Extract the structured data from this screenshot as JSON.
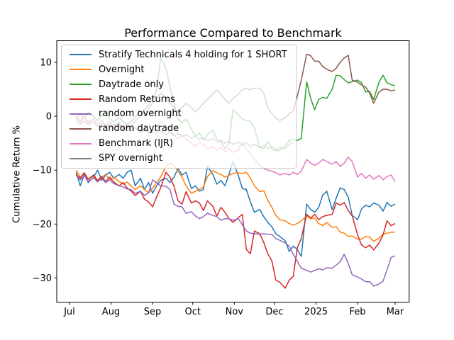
{
  "chart_data": {
    "type": "line",
    "title": "Performance Compared to Benchmark",
    "xlabel": "",
    "ylabel": "Cumulative Return %",
    "grid": false,
    "background": "#ffffff",
    "axis_color": "#000000",
    "xlim": [
      -9.5,
      253.5
    ],
    "ylim": [
      -34.5,
      14
    ],
    "xticks": [
      {
        "day": 0,
        "label": "Jul"
      },
      {
        "day": 31,
        "label": "Aug"
      },
      {
        "day": 62,
        "label": "Sep"
      },
      {
        "day": 92,
        "label": "Oct"
      },
      {
        "day": 123,
        "label": "Nov"
      },
      {
        "day": 153,
        "label": "Dec"
      },
      {
        "day": 184,
        "label": "2025"
      },
      {
        "day": 215,
        "label": "Feb"
      },
      {
        "day": 243,
        "label": "Mar"
      }
    ],
    "yticks": [
      {
        "value": 10,
        "label": "10"
      },
      {
        "value": 0,
        "label": "0"
      },
      {
        "value": -10,
        "label": "−10"
      },
      {
        "value": -20,
        "label": "−20"
      },
      {
        "value": -30,
        "label": "−30"
      }
    ],
    "legend": {
      "position": "upper left",
      "framealpha": 0.75,
      "edge_color": "#c9c9c9"
    },
    "days": [
      5,
      8,
      11,
      14,
      18,
      21,
      24,
      27,
      30,
      33,
      37,
      40,
      43,
      46,
      49,
      53,
      56,
      59,
      62,
      65,
      68,
      72,
      75,
      78,
      81,
      84,
      87,
      91,
      94,
      97,
      100,
      103,
      107,
      110,
      113,
      116,
      119,
      122,
      126,
      129,
      132,
      135,
      138,
      142,
      145,
      148,
      151,
      154,
      157,
      161,
      164,
      167,
      170,
      173,
      177,
      180,
      183,
      186,
      189,
      192,
      196,
      199,
      202,
      205,
      208,
      211,
      215,
      218,
      221,
      224,
      227,
      231,
      234,
      237,
      240,
      243
    ],
    "series": [
      {
        "name": "Stratify Technicals 4 holding for 1 SHORT",
        "color": "#1f77b4",
        "values": [
          -10.4,
          -12.9,
          -10.8,
          -12.3,
          -11.3,
          -10.0,
          -11.9,
          -10.9,
          -10.4,
          -11.5,
          -10.8,
          -11.5,
          -10.4,
          -10.0,
          -12.9,
          -11.5,
          -13.6,
          -12.3,
          -14.3,
          -12.9,
          -11.9,
          -11.5,
          -12.3,
          -11.3,
          -9.7,
          -10.9,
          -10.4,
          -13.4,
          -12.9,
          -13.9,
          -13.6,
          -9.3,
          -10.8,
          -12.6,
          -11.9,
          -12.9,
          -10.8,
          -8.4,
          -11.0,
          -13.4,
          -13.6,
          -15.9,
          -17.8,
          -17.3,
          -18.6,
          -19.7,
          -20.5,
          -21.8,
          -22.3,
          -23.1,
          -25.1,
          -24.1,
          -24.7,
          -26.0,
          -16.3,
          -17.3,
          -17.8,
          -16.9,
          -14.6,
          -13.9,
          -17.3,
          -15.2,
          -13.3,
          -13.6,
          -15.0,
          -18.4,
          -19.2,
          -17.2,
          -16.5,
          -16.8,
          -16.1,
          -16.5,
          -17.6,
          -16.0,
          -16.7,
          -16.3
        ]
      },
      {
        "name": "Overnight",
        "color": "#ff7f0e",
        "values": [
          -10.0,
          -11.3,
          -10.5,
          -11.8,
          -11.0,
          -12.1,
          -11.3,
          -10.8,
          -11.8,
          -11.3,
          -12.1,
          -12.6,
          -12.2,
          -12.9,
          -13.6,
          -12.9,
          -13.6,
          -14.2,
          -13.4,
          -12.3,
          -11.3,
          -9.3,
          -8.7,
          -9.1,
          -10.2,
          -11.3,
          -12.9,
          -14.3,
          -13.9,
          -13.6,
          -13.1,
          -11.2,
          -10.1,
          -10.5,
          -10.8,
          -11.3,
          -11.0,
          -10.6,
          -10.5,
          -10.6,
          -10.4,
          -11.5,
          -12.9,
          -14.0,
          -13.8,
          -15.6,
          -16.9,
          -18.4,
          -19.2,
          -19.4,
          -19.9,
          -20.2,
          -19.9,
          -19.4,
          -18.5,
          -19.0,
          -18.9,
          -19.9,
          -20.3,
          -19.7,
          -20.6,
          -20.5,
          -21.5,
          -21.7,
          -22.3,
          -22.2,
          -22.8,
          -22.8,
          -22.3,
          -22.4,
          -23.2,
          -22.6,
          -21.9,
          -21.7,
          -21.5,
          -21.5
        ]
      },
      {
        "name": "Daytrade only",
        "color": "#2ca02c",
        "values": [
          -0.5,
          0.5,
          -0.4,
          0.8,
          0.0,
          -0.8,
          0.1,
          0.8,
          -0.5,
          -1.0,
          -0.3,
          -0.9,
          -1.6,
          -2.0,
          -0.8,
          0.1,
          1.3,
          2.1,
          3.1,
          4.7,
          10.8,
          8.9,
          5.5,
          2.4,
          -0.5,
          -1.3,
          -0.5,
          -2.4,
          -3.7,
          -3.1,
          -4.5,
          -3.4,
          -2.6,
          -4.3,
          -4.7,
          -6.0,
          -5.1,
          1.2,
          0.3,
          -0.5,
          -0.8,
          -1.0,
          -2.1,
          -5.8,
          -6.0,
          -4.7,
          -6.0,
          -6.4,
          -6.3,
          -5.5,
          -4.5,
          -4.3,
          -4.5,
          -4.1,
          6.4,
          3.3,
          1.2,
          3.1,
          3.5,
          3.3,
          5.0,
          7.6,
          7.5,
          6.8,
          6.2,
          6.4,
          6.7,
          6.2,
          4.5,
          4.6,
          3.1,
          6.3,
          7.6,
          6.2,
          5.9,
          5.6
        ]
      },
      {
        "name": "Random Returns",
        "color": "#d62728",
        "values": [
          -10.8,
          -11.5,
          -10.5,
          -11.7,
          -10.9,
          -11.9,
          -11.2,
          -12.1,
          -11.3,
          -12.2,
          -12.9,
          -12.3,
          -13.3,
          -13.9,
          -14.7,
          -13.9,
          -15.4,
          -15.9,
          -16.8,
          -15.0,
          -13.3,
          -10.4,
          -11.3,
          -13.0,
          -15.7,
          -16.3,
          -14.0,
          -16.1,
          -15.7,
          -16.1,
          -17.5,
          -15.7,
          -16.7,
          -18.5,
          -16.9,
          -17.8,
          -19.0,
          -19.7,
          -18.8,
          -18.2,
          -24.7,
          -25.5,
          -21.3,
          -21.8,
          -23.4,
          -25.5,
          -26.8,
          -30.4,
          -30.8,
          -31.9,
          -30.4,
          -29.7,
          -24.4,
          -22.7,
          -18.2,
          -18.9,
          -18.2,
          -19.2,
          -18.6,
          -18.4,
          -18.2,
          -16.1,
          -16.5,
          -16.0,
          -17.5,
          -18.5,
          -22.0,
          -23.9,
          -24.4,
          -23.9,
          -24.8,
          -23.5,
          -22.0,
          -19.4,
          -20.3,
          -19.9
        ]
      },
      {
        "name": "random overnight",
        "color": "#9467bd",
        "values": [
          -11.0,
          -11.8,
          -11.0,
          -12.1,
          -11.4,
          -12.2,
          -11.5,
          -12.3,
          -11.8,
          -12.5,
          -12.9,
          -13.1,
          -13.5,
          -13.6,
          -14.3,
          -13.9,
          -14.7,
          -14.2,
          -11.8,
          -12.3,
          -12.9,
          -13.0,
          -13.6,
          -16.3,
          -16.7,
          -16.8,
          -18.0,
          -17.7,
          -18.5,
          -19.0,
          -18.6,
          -18.0,
          -18.4,
          -18.6,
          -19.3,
          -19.0,
          -19.0,
          -19.3,
          -19.0,
          -20.1,
          -21.3,
          -21.7,
          -21.8,
          -21.9,
          -21.8,
          -21.9,
          -21.9,
          -22.7,
          -23.0,
          -23.5,
          -24.1,
          -25.6,
          -26.9,
          -28.2,
          -28.6,
          -28.9,
          -28.6,
          -28.3,
          -28.5,
          -28.1,
          -28.2,
          -27.6,
          -27.0,
          -25.6,
          -27.3,
          -29.4,
          -29.8,
          -30.2,
          -30.7,
          -30.7,
          -31.5,
          -31.1,
          -30.6,
          -28.5,
          -26.2,
          -25.9
        ]
      },
      {
        "name": "random daytrade",
        "color": "#8c564b",
        "values": [
          -0.3,
          -1.0,
          -0.1,
          -1.2,
          -0.5,
          -1.4,
          -0.8,
          -1.7,
          -1.0,
          -1.8,
          -1.2,
          -2.1,
          -1.4,
          -1.0,
          -0.1,
          0.9,
          0.4,
          1.4,
          2.4,
          3.3,
          4.3,
          3.4,
          2.5,
          1.6,
          0.8,
          1.6,
          2.4,
          1.6,
          0.8,
          1.6,
          2.4,
          3.1,
          4.1,
          4.9,
          4.1,
          3.1,
          2.4,
          3.3,
          4.1,
          4.9,
          5.2,
          4.9,
          5.2,
          5.2,
          4.3,
          1.6,
          0.5,
          -0.3,
          -0.8,
          -0.3,
          0.5,
          1.0,
          3.7,
          6.7,
          11.5,
          11.2,
          10.2,
          10.2,
          9.2,
          8.7,
          8.3,
          8.9,
          10.0,
          10.8,
          11.3,
          6.7,
          6.3,
          5.8,
          5.4,
          4.3,
          2.4,
          4.5,
          5.0,
          5.0,
          4.7,
          4.9
        ]
      },
      {
        "name": "Benchmark (IJR)",
        "color": "#e377c2",
        "values": [
          0.1,
          -0.8,
          -0.1,
          -1.0,
          -0.5,
          -1.4,
          -0.8,
          -1.8,
          -1.0,
          -2.1,
          -1.4,
          -2.4,
          -1.8,
          -2.8,
          -2.1,
          -3.1,
          -2.4,
          -3.1,
          -2.8,
          -2.1,
          -1.0,
          -1.8,
          -2.8,
          -3.4,
          -4.2,
          -3.4,
          -4.2,
          -5.0,
          -5.6,
          -4.7,
          -5.4,
          -6.0,
          -5.6,
          -6.3,
          -5.8,
          -6.6,
          -6.0,
          -6.7,
          -6.3,
          -4.7,
          -6.0,
          -7.0,
          -8.0,
          -9.1,
          -9.7,
          -10.0,
          -10.2,
          -10.5,
          -10.9,
          -10.6,
          -10.9,
          -10.4,
          -10.8,
          -10.2,
          -8.0,
          -8.7,
          -9.1,
          -8.7,
          -8.0,
          -8.4,
          -8.9,
          -8.4,
          -9.3,
          -8.7,
          -7.6,
          -8.4,
          -11.3,
          -10.6,
          -11.5,
          -10.9,
          -11.7,
          -11.0,
          -11.8,
          -11.2,
          -10.9,
          -12.1
        ]
      },
      {
        "name": "SPY overnight",
        "color": "#7f7f7f",
        "values": [
          -0.8,
          -1.5,
          -0.9,
          -1.6,
          -1.1,
          -1.9,
          -1.3,
          -2.0,
          -1.5,
          -2.2,
          -1.7,
          -2.5,
          -2.0,
          -2.6,
          -2.1,
          -2.8,
          -2.3,
          -3.0,
          -2.6,
          -3.2,
          -2.7,
          -3.4,
          -3.0,
          -3.6,
          -3.2,
          -3.9,
          -3.4,
          -4.1,
          -3.7,
          -4.3,
          -3.9,
          -4.6,
          -4.1,
          -4.8,
          -4.4,
          -5.0,
          -4.6,
          -5.2,
          -4.8,
          -5.4,
          -5.0,
          -5.6,
          -5.2,
          -5.8,
          -5.4,
          -6.0,
          -5.6,
          -6.2,
          -5.8,
          -6.0,
          -5.2,
          -4.8,
          null,
          null,
          null,
          null,
          null,
          null,
          null,
          null,
          null,
          null,
          null,
          null,
          null,
          null,
          null,
          null,
          null,
          null,
          null,
          null,
          null,
          null,
          null,
          null
        ]
      }
    ]
  }
}
